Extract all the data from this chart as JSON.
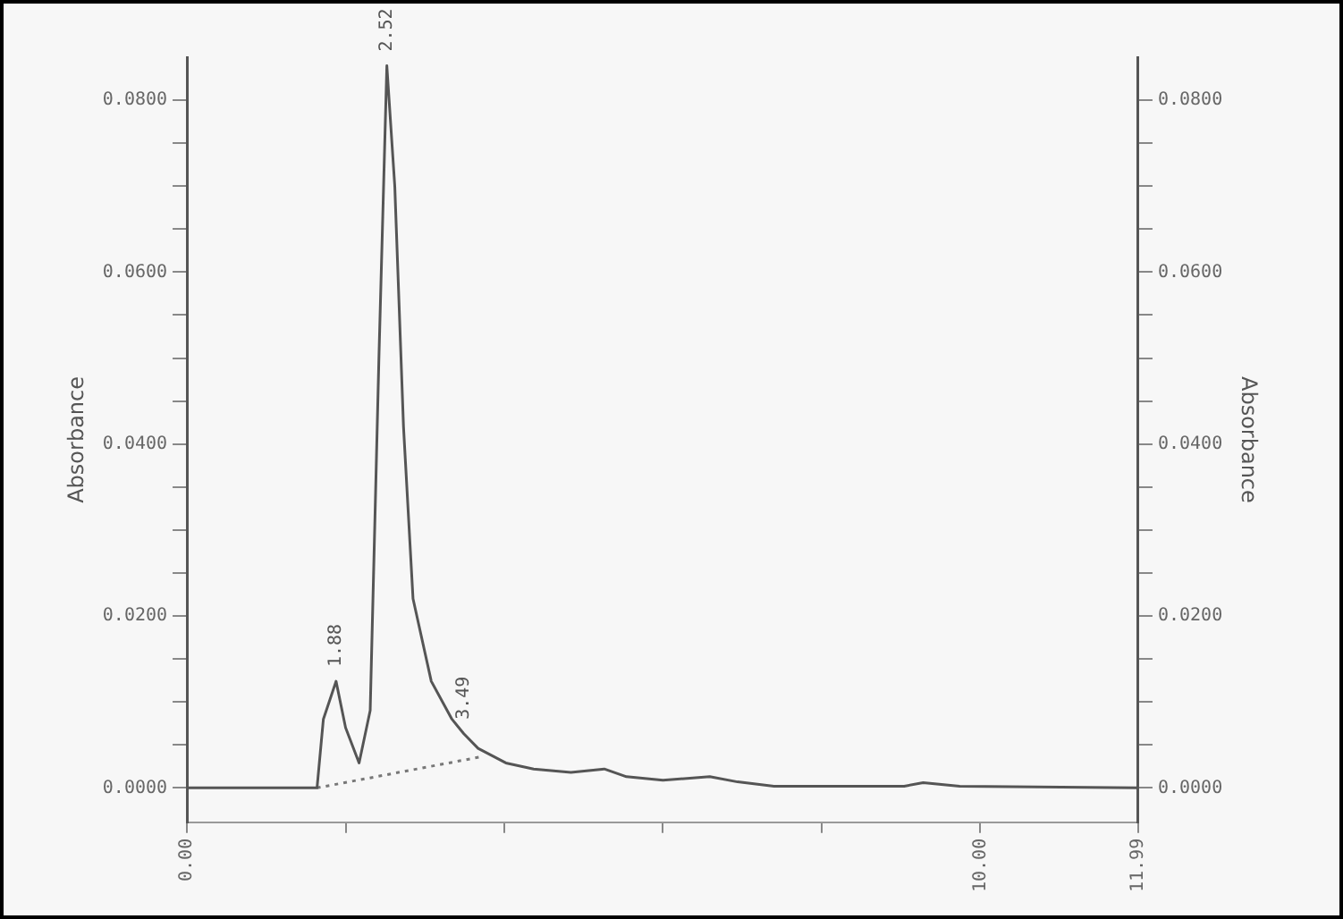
{
  "chart_data": {
    "type": "line",
    "ylabel": "Absorbance",
    "y2label": "Absorbance",
    "series": [
      {
        "color": "#555555",
        "x": [
          0,
          1.64,
          1.72,
          1.88,
          2.0,
          2.17,
          2.31,
          2.42,
          2.52,
          2.62,
          2.73,
          2.85,
          3.08,
          3.34,
          3.49,
          3.67,
          4.02,
          4.37,
          4.84,
          5.26,
          5.54,
          6.0,
          6.59,
          6.94,
          7.4,
          9.04,
          9.28,
          9.74,
          11.99
        ],
        "values": [
          0,
          0,
          0.008,
          0.0124,
          0.007,
          0.0029,
          0.009,
          0.05,
          0.084,
          0.07,
          0.042,
          0.022,
          0.0124,
          0.008,
          0.0063,
          0.0046,
          0.0029,
          0.0022,
          0.0018,
          0.0022,
          0.0013,
          0.0009,
          0.0013,
          0.0007,
          0.0002,
          0.0002,
          0.0006,
          0.0002,
          0
        ]
      },
      {
        "color": "#777777",
        "line_style": "dotted",
        "x": [
          1.64,
          3.7
        ],
        "values": [
          0,
          0.0036
        ]
      }
    ],
    "annotations": [
      {
        "text": "1.88",
        "x": 1.88,
        "y": 0.0124
      },
      {
        "text": "2.52",
        "x": 2.52,
        "y": 0.084
      },
      {
        "text": "3.49",
        "x": 3.49,
        "y": 0.0063
      }
    ],
    "xlim": [
      0,
      11.99
    ],
    "xticks": [
      {
        "value": 0,
        "label": "0.00"
      },
      {
        "value": 2,
        "label": null
      },
      {
        "value": 4,
        "label": null
      },
      {
        "value": 6,
        "label": null
      },
      {
        "value": 8,
        "label": null
      },
      {
        "value": 10,
        "label": "10.00"
      },
      {
        "value": 11.99,
        "label": "11.99"
      }
    ],
    "ylim": [
      -0.004,
      0.085
    ],
    "yticks": [
      {
        "value": 0,
        "label": "0.0000"
      },
      {
        "value": 0.005,
        "label": null
      },
      {
        "value": 0.01,
        "label": null
      },
      {
        "value": 0.015,
        "label": null
      },
      {
        "value": 0.02,
        "label": "0.0200"
      },
      {
        "value": 0.025,
        "label": null
      },
      {
        "value": 0.03,
        "label": null
      },
      {
        "value": 0.035,
        "label": null
      },
      {
        "value": 0.04,
        "label": "0.0400"
      },
      {
        "value": 0.045,
        "label": null
      },
      {
        "value": 0.05,
        "label": null
      },
      {
        "value": 0.055,
        "label": null
      },
      {
        "value": 0.06,
        "label": "0.0600"
      },
      {
        "value": 0.065,
        "label": null
      },
      {
        "value": 0.07,
        "label": null
      },
      {
        "value": 0.075,
        "label": null
      },
      {
        "value": 0.08,
        "label": "0.0800"
      }
    ],
    "y2lim": [
      -0.004,
      0.085
    ],
    "y2ticks": [
      {
        "value": 0,
        "label": "0.0000"
      },
      {
        "value": 0.005,
        "label": null
      },
      {
        "value": 0.01,
        "label": null
      },
      {
        "value": 0.015,
        "label": null
      },
      {
        "value": 0.02,
        "label": "0.0200"
      },
      {
        "value": 0.025,
        "label": null
      },
      {
        "value": 0.03,
        "label": null
      },
      {
        "value": 0.035,
        "label": null
      },
      {
        "value": 0.04,
        "label": "0.0400"
      },
      {
        "value": 0.045,
        "label": null
      },
      {
        "value": 0.05,
        "label": null
      },
      {
        "value": 0.055,
        "label": null
      },
      {
        "value": 0.06,
        "label": "0.0600"
      },
      {
        "value": 0.065,
        "label": null
      },
      {
        "value": 0.07,
        "label": null
      },
      {
        "value": 0.075,
        "label": null
      },
      {
        "value": 0.08,
        "label": "0.0800"
      }
    ],
    "grid": false,
    "legend": false,
    "marker": "none"
  }
}
